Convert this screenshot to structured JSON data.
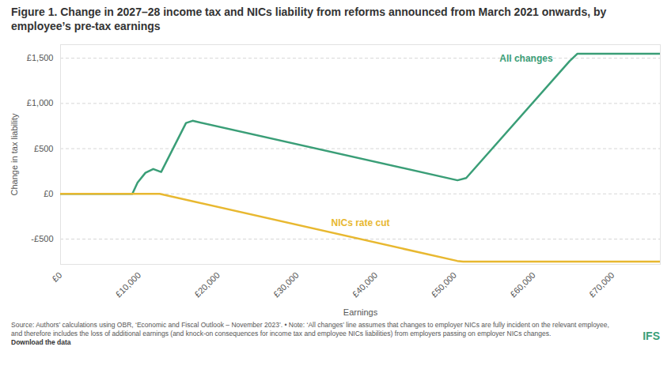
{
  "chart_data": {
    "type": "line",
    "title": "Figure 1. Change in 2027–28 income tax and NICs liability from reforms announced from March 2021 onwards, by employee’s pre-tax earnings",
    "x_label": "Earnings",
    "y_label": "Change in tax liability",
    "xlim": [
      0,
      76000
    ],
    "ylim": [
      -780,
      1650
    ],
    "xticks": [
      {
        "value": 0,
        "label": "£0"
      },
      {
        "value": 10000,
        "label": "£10,000"
      },
      {
        "value": 20000,
        "label": "£20,000"
      },
      {
        "value": 30000,
        "label": "£30,000"
      },
      {
        "value": 40000,
        "label": "£40,000"
      },
      {
        "value": 50000,
        "label": "£50,000"
      },
      {
        "value": 60000,
        "label": "£60,000"
      },
      {
        "value": 70000,
        "label": "£70,000"
      }
    ],
    "yticks": [
      {
        "value": -500,
        "label": "-£500"
      },
      {
        "value": 0,
        "label": "£0"
      },
      {
        "value": 500,
        "label": "£500"
      },
      {
        "value": 1000,
        "label": "£1,000"
      },
      {
        "value": 1500,
        "label": "£1,500"
      }
    ],
    "grid": true,
    "series": [
      {
        "name": "All changes",
        "color": "#3a9e77",
        "x": [
          0,
          9100,
          9760,
          10760,
          11750,
          12750,
          15900,
          16730,
          50300,
          51400,
          64500,
          65500,
          76000
        ],
        "values": [
          0,
          0,
          125,
          233,
          275,
          242,
          783,
          808,
          150,
          175,
          1467,
          1550,
          1550
        ]
      },
      {
        "name": "NICs rate cut",
        "color": "#e8b830",
        "x": [
          0,
          12570,
          50270,
          51000,
          76000
        ],
        "values": [
          0,
          0,
          -742,
          -750,
          -750
        ]
      }
    ],
    "annotations": [
      {
        "text": "All changes",
        "x": 59000,
        "y": 1500,
        "color": "#3a9e77"
      },
      {
        "text": "NICs rate cut",
        "x": 38000,
        "y": -320,
        "color": "#e8b830"
      }
    ],
    "source": "Source: Authors’ calculations using OBR, ‘Economic and Fiscal Outlook – November 2023’. • Note: ‘All changes’ line assumes that changes to employer NICs are fully incident on the relevant employee, and therefore includes the loss of additional earnings (and knock-on consequences for income tax and employee NICs liabilities) from employers passing on employer NICs changes.",
    "download": "Download the data",
    "logo": "IFS"
  }
}
